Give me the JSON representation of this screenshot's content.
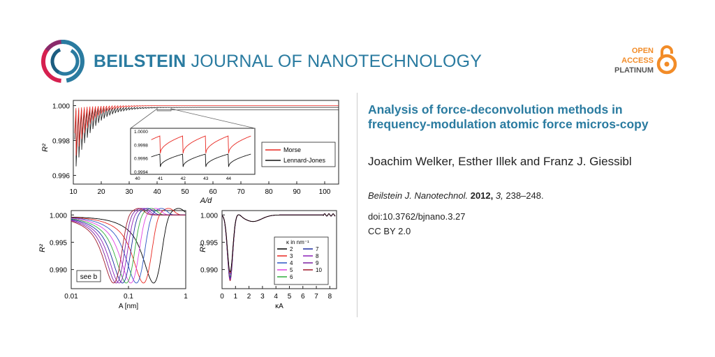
{
  "header": {
    "journal_bold": "BEILSTEIN",
    "journal_rest": "JOURNAL OF NANOTECHNOLOGY",
    "badge": {
      "line1": "OPEN",
      "line2": "ACCESS",
      "line3": "PLATINUM"
    }
  },
  "article": {
    "title": "Analysis of force-deconvolution methods in frequency-modulation atomic force micros-copy",
    "authors": "Joachim Welker, Esther Illek and Franz J. Giessibl",
    "citation": {
      "journal": "Beilstein J. Nanotechnol.",
      "year": "2012,",
      "volume": "3,",
      "pages": "238–248."
    },
    "doi": "doi:10.3762/bjnano.3.27",
    "license": "CC BY 2.0"
  },
  "colors": {
    "brand": "#2a7ba0",
    "oa": "#f28c28",
    "morse": "#e8261f",
    "lj": "#111111"
  },
  "chart_data": [
    {
      "type": "line",
      "xlabel": "A/d",
      "ylabel": "R²",
      "xlim": [
        10,
        105
      ],
      "ylim": [
        0.9955,
        1.0003
      ],
      "x_ticks": [
        "10",
        "20",
        "30",
        "40",
        "50",
        "60",
        "70",
        "80",
        "90",
        "100"
      ],
      "y_ticks": [
        "0.996",
        "0.998",
        "1.000"
      ],
      "series": [
        {
          "name": "Morse"
        },
        {
          "name": "Lennard-Jones"
        }
      ],
      "inset": {
        "xlim": [
          40,
          45
        ],
        "x_ticks": [
          "40",
          "41",
          "42",
          "43",
          "44"
        ],
        "y_ticks": [
          "0.9994",
          "0.9996",
          "0.9998",
          "1.0000"
        ]
      }
    },
    {
      "type": "line",
      "xlabel": "A [nm]",
      "ylabel": "R²",
      "x_scale": "log",
      "xlim": [
        0.01,
        1
      ],
      "ylim": [
        0.9865,
        1.0008
      ],
      "x_ticks": [
        "0.01",
        "0.1",
        "1"
      ],
      "y_ticks": [
        "0.990",
        "0.995",
        "1.000"
      ],
      "annotation": "see b"
    },
    {
      "type": "line",
      "xlabel": "κA",
      "ylabel": "R²",
      "xlim": [
        0,
        8.5
      ],
      "ylim": [
        0.9865,
        1.0008
      ],
      "x_ticks": [
        "0",
        "1",
        "2",
        "3",
        "4",
        "5",
        "6",
        "7",
        "8"
      ],
      "y_ticks": [
        "0.990",
        "0.995",
        "1.000"
      ],
      "legend_title": "κ  in nm⁻¹",
      "series": [
        {
          "name": "2",
          "color": "#000000"
        },
        {
          "name": "3",
          "color": "#e8261f"
        },
        {
          "name": "4",
          "color": "#2b54c4"
        },
        {
          "name": "5",
          "color": "#e040e0"
        },
        {
          "name": "6",
          "color": "#2eae3b"
        },
        {
          "name": "7",
          "color": "#1a2a9e"
        },
        {
          "name": "8",
          "color": "#8a1fb8"
        },
        {
          "name": "9",
          "color": "#7a1fa0"
        },
        {
          "name": "10",
          "color": "#a0182a"
        }
      ]
    }
  ]
}
